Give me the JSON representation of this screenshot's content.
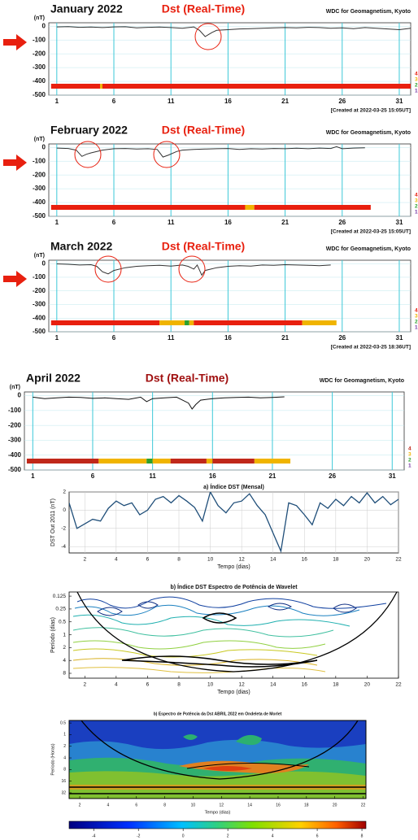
{
  "chart_data": [
    {
      "type": "line",
      "title": "January  2022",
      "subtitle": "Dst (Real-Time)",
      "source": "WDC for Geomagnetism, Kyoto",
      "created": "[Created at 2022-03-25 15:05UT]",
      "ylabel": "(nT)",
      "x": [
        1,
        2,
        3,
        4,
        5,
        6,
        7,
        8,
        9,
        10,
        11,
        12,
        13,
        13.5,
        14,
        14.3,
        14.6,
        15,
        16,
        17,
        18,
        19,
        20,
        21,
        22,
        23,
        24,
        25,
        26,
        27,
        28,
        29,
        30,
        31,
        32
      ],
      "values": [
        -5,
        -3,
        -8,
        -6,
        -10,
        -5,
        -4,
        -12,
        -8,
        -6,
        -10,
        -15,
        -5,
        -30,
        -75,
        -60,
        -45,
        -30,
        -25,
        -20,
        -18,
        -15,
        -12,
        -10,
        -12,
        -8,
        -10,
        -15,
        -12,
        -18,
        -10,
        -15,
        -20,
        -25,
        -15
      ],
      "color": "#333333",
      "xlim": [
        0.3,
        32
      ],
      "ylim": [
        -500,
        25
      ],
      "xticks": [
        1,
        6,
        11,
        16,
        21,
        26,
        31
      ],
      "yticks": [
        0,
        -100,
        -200,
        -300,
        -400,
        -500
      ],
      "grid": true,
      "status_bar": [
        {
          "start": 0.5,
          "end": 4.8,
          "color": "#e8200f"
        },
        {
          "start": 4.8,
          "end": 5.0,
          "color": "#f0b400"
        },
        {
          "start": 5.0,
          "end": 32,
          "color": "#e8200f"
        }
      ],
      "level_labels": [
        {
          "label": "4",
          "color": "#e8200f"
        },
        {
          "label": "3",
          "color": "#f0b400"
        },
        {
          "label": "2",
          "color": "#2ca02c"
        },
        {
          "label": "1",
          "color": "#7030a0"
        }
      ]
    },
    {
      "type": "line",
      "title": "February  2022",
      "subtitle": "Dst (Real-Time)",
      "source": "WDC for Geomagnetism, Kyoto",
      "created": "[Created at 2022-03-25 15:05UT]",
      "ylabel": "(nT)",
      "x": [
        1,
        2,
        2.7,
        3.2,
        3.6,
        4,
        5,
        6,
        7,
        8,
        9,
        9.8,
        10.3,
        10.8,
        11.5,
        12,
        13,
        14,
        15,
        16,
        17,
        18,
        19,
        20,
        21,
        22,
        23,
        24,
        25,
        25.5,
        26,
        27,
        28
      ],
      "values": [
        -5,
        -8,
        -20,
        -65,
        -50,
        -40,
        -20,
        -10,
        -8,
        -12,
        -10,
        -15,
        -70,
        -55,
        -30,
        -20,
        -15,
        -12,
        -10,
        -8,
        -15,
        -10,
        -12,
        -8,
        -10,
        -6,
        -10,
        -5,
        -8,
        5,
        -10,
        -5,
        -3
      ],
      "color": "#333333",
      "xlim": [
        0.3,
        32
      ],
      "ylim": [
        -500,
        25
      ],
      "xticks": [
        1,
        6,
        11,
        16,
        21,
        26,
        31
      ],
      "yticks": [
        0,
        -100,
        -200,
        -300,
        -400,
        -500
      ],
      "grid": true,
      "status_bar": [
        {
          "start": 0.5,
          "end": 17.5,
          "color": "#e8200f"
        },
        {
          "start": 17.5,
          "end": 18.3,
          "color": "#f0b400"
        },
        {
          "start": 18.3,
          "end": 28.5,
          "color": "#e8200f"
        }
      ],
      "level_labels": [
        {
          "label": "4",
          "color": "#e8200f"
        },
        {
          "label": "3",
          "color": "#f0b400"
        },
        {
          "label": "2",
          "color": "#2ca02c"
        },
        {
          "label": "1",
          "color": "#7030a0"
        }
      ]
    },
    {
      "type": "line",
      "title": "March  2022",
      "subtitle": "Dst (Real-Time)",
      "source": "WDC for Geomagnetism, Kyoto",
      "created": "[Created at 2022-03-25 18:36UT]",
      "ylabel": "(nT)",
      "x": [
        1,
        2,
        3,
        4,
        4.5,
        5,
        5.5,
        6,
        7,
        8,
        9,
        10,
        11,
        12,
        12.5,
        13,
        13.3,
        13.7,
        14,
        15,
        16,
        17,
        18,
        19,
        20,
        21,
        22,
        23,
        24,
        25
      ],
      "values": [
        -2,
        -5,
        -10,
        -8,
        -20,
        -60,
        -75,
        -50,
        -30,
        -20,
        -15,
        -12,
        -18,
        -10,
        -20,
        -40,
        -10,
        -85,
        -50,
        -30,
        -20,
        -15,
        -18,
        -10,
        -12,
        -8,
        -10,
        -12,
        -15,
        -10
      ],
      "color": "#333333",
      "xlim": [
        0.3,
        32
      ],
      "ylim": [
        -500,
        25
      ],
      "xticks": [
        1,
        6,
        11,
        16,
        21,
        26,
        31
      ],
      "yticks": [
        0,
        -100,
        -200,
        -300,
        -400,
        -500
      ],
      "grid": true,
      "status_bar": [
        {
          "start": 0.5,
          "end": 10,
          "color": "#e8200f"
        },
        {
          "start": 10,
          "end": 12.2,
          "color": "#f0b400"
        },
        {
          "start": 12.2,
          "end": 12.6,
          "color": "#2ca02c"
        },
        {
          "start": 12.6,
          "end": 13,
          "color": "#f0b400"
        },
        {
          "start": 13,
          "end": 22.5,
          "color": "#e8200f"
        },
        {
          "start": 22.5,
          "end": 25.5,
          "color": "#f0b400"
        }
      ],
      "level_labels": [
        {
          "label": "4",
          "color": "#e8200f"
        },
        {
          "label": "3",
          "color": "#f0b400"
        },
        {
          "label": "2",
          "color": "#2ca02c"
        },
        {
          "label": "1",
          "color": "#7030a0"
        }
      ]
    },
    {
      "type": "line",
      "title": "April  2022",
      "subtitle": "Dst (Real-Time)",
      "source": "WDC for Geomagnetism, Kyoto",
      "ylabel": "(nT)",
      "x": [
        1,
        2,
        3,
        4,
        5,
        6,
        7,
        8,
        9,
        10,
        10.5,
        11,
        12,
        13,
        13.5,
        14,
        14.3,
        14.6,
        15,
        16,
        17,
        18,
        19,
        20,
        21,
        22
      ],
      "values": [
        -10,
        -20,
        -15,
        -10,
        -12,
        -18,
        -15,
        -20,
        -25,
        -10,
        -40,
        -20,
        -15,
        -10,
        -30,
        -50,
        -90,
        -60,
        -30,
        -20,
        -15,
        -12,
        -10,
        -15,
        -12,
        -8
      ],
      "color": "#111111",
      "xlim": [
        0.3,
        32
      ],
      "ylim": [
        -500,
        25
      ],
      "xticks": [
        1,
        6,
        11,
        16,
        21,
        26,
        31
      ],
      "yticks": [
        0,
        -100,
        -200,
        -300,
        -400,
        -500
      ],
      "grid": true,
      "status_bar": [
        {
          "start": 0.5,
          "end": 6.5,
          "color": "#c0281a"
        },
        {
          "start": 6.5,
          "end": 10.5,
          "color": "#f0b400"
        },
        {
          "start": 10.5,
          "end": 11,
          "color": "#2ca02c"
        },
        {
          "start": 11,
          "end": 12.5,
          "color": "#f0b400"
        },
        {
          "start": 12.5,
          "end": 15.5,
          "color": "#c0281a"
        },
        {
          "start": 15.5,
          "end": 16,
          "color": "#f0b400"
        },
        {
          "start": 16,
          "end": 19.5,
          "color": "#c0281a"
        },
        {
          "start": 19.5,
          "end": 22.5,
          "color": "#f0b400"
        }
      ],
      "level_labels": [
        {
          "label": "4",
          "color": "#c0281a"
        },
        {
          "label": "3",
          "color": "#f0b400"
        },
        {
          "label": "2",
          "color": "#2ca02c"
        },
        {
          "label": "1",
          "color": "#7030a0"
        }
      ]
    },
    {
      "type": "line",
      "title": "a) Índice DST (Mensal)",
      "xlabel": "Tempo (dias)",
      "ylabel": "DST Out 2011 (nT)",
      "x": [
        1,
        1.5,
        2,
        2.5,
        3,
        3.5,
        4,
        4.5,
        5,
        5.5,
        6,
        6.5,
        7,
        7.5,
        8,
        8.5,
        9,
        9.5,
        10,
        10.5,
        11,
        11.5,
        12,
        12.5,
        13,
        13.5,
        14,
        14.5,
        15,
        15.5,
        16,
        16.5,
        17,
        17.5,
        18,
        18.5,
        19,
        19.5,
        20,
        20.5,
        21,
        21.5,
        22
      ],
      "values": [
        0.8,
        -2,
        -1.5,
        -1,
        -1.2,
        0.2,
        1,
        0.5,
        0.8,
        -0.5,
        0,
        1.2,
        1.5,
        0.8,
        1.6,
        1,
        0.3,
        -1.2,
        2,
        0.5,
        -0.3,
        0.8,
        1,
        1.8,
        0.5,
        -0.5,
        -2.5,
        -4.5,
        0.8,
        0.5,
        -0.5,
        -1.6,
        0.8,
        0.2,
        1.2,
        0.5,
        1.5,
        0.8,
        1.9,
        0.8,
        1.5,
        0.6,
        1.2
      ],
      "color": "#1f4e79",
      "xlim": [
        1,
        22
      ],
      "ylim": [
        -4.7,
        2
      ],
      "xticks": [
        2,
        4,
        6,
        8,
        10,
        12,
        14,
        16,
        18,
        20,
        22
      ],
      "yticks": [
        2,
        0,
        -2,
        -4
      ],
      "grid": true
    },
    {
      "type": "contour",
      "title": "b) Índice DST Espectro de Potência de Wavelet",
      "xlabel": "Tempo (dias)",
      "ylabel": "Período (dias)",
      "xlim": [
        1,
        22
      ],
      "ylim": [
        10.4,
        0.1
      ],
      "log_y": true,
      "xticks": [
        2,
        4,
        6,
        8,
        10,
        12,
        14,
        16,
        18,
        20,
        22
      ],
      "yticks": [
        0.125,
        0.25,
        0.5,
        1,
        2,
        4,
        8
      ]
    },
    {
      "type": "heatmap",
      "title": "b) Espectro de Potência da Dst ABRIL 2022 em Ondeleta de Morlet",
      "xlabel": "Tempo (dias)",
      "ylabel": "Período (Horas)",
      "xlim": [
        1.25,
        22.2
      ],
      "ylim": [
        45,
        0.43
      ],
      "log_y": true,
      "xticks": [
        2,
        4,
        6,
        8,
        10,
        12,
        14,
        16,
        18,
        20,
        22
      ],
      "yticks": [
        0.5,
        1,
        2,
        4,
        8,
        16,
        32
      ],
      "colorbar": {
        "lim": [
          -5.1,
          8.18
        ],
        "ticks": [
          -4,
          -2,
          0,
          2,
          4,
          6,
          8
        ]
      }
    }
  ]
}
